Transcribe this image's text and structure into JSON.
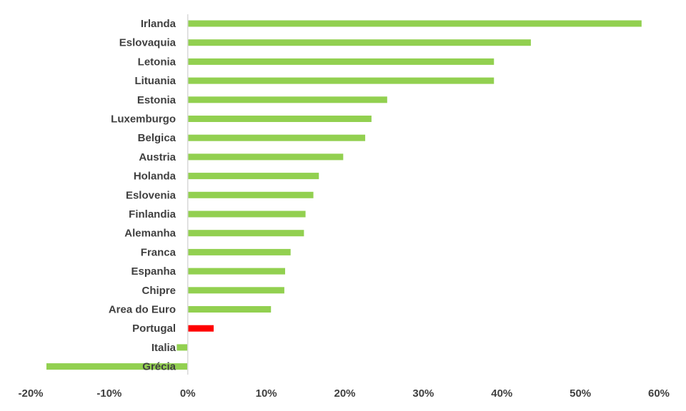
{
  "chart_data": {
    "type": "bar",
    "orientation": "horizontal",
    "title": "",
    "xlabel": "",
    "ylabel": "",
    "xlim": [
      -20,
      60
    ],
    "grid": false,
    "legend": "none",
    "categories": [
      "Irlanda",
      "Eslovaquia",
      "Letonia",
      "Lituania",
      "Estonia",
      "Luxemburgo",
      "Belgica",
      "Austria",
      "Holanda",
      "Eslovenia",
      "Finlandia",
      "Alemanha",
      "Franca",
      "Espanha",
      "Chipre",
      "Area do Euro",
      "Portugal",
      "Italia",
      "Grécia"
    ],
    "values": [
      57.8,
      43.7,
      39.0,
      39.0,
      25.4,
      23.4,
      22.6,
      19.8,
      16.7,
      16.0,
      15.0,
      14.8,
      13.1,
      12.4,
      12.3,
      10.6,
      3.3,
      -1.4,
      -18.0
    ],
    "highlight": "Portugal",
    "x_ticks": [
      "-20%",
      "-10%",
      "0%",
      "10%",
      "20%",
      "30%",
      "40%",
      "50%",
      "60%"
    ],
    "colors": {
      "bar": "#92d050",
      "highlight": "#ff0000",
      "axis": "#d9d9d9",
      "text": "#404040"
    }
  }
}
